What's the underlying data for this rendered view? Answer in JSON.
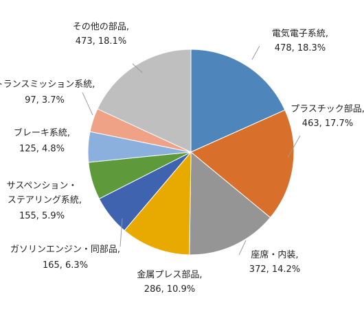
{
  "chart_data": {
    "type": "pie",
    "title": "",
    "start_angle_deg": 0,
    "direction": "clockwise",
    "slices": [
      {
        "label": "電気電子系統,",
        "value": 478,
        "percent": "18.3%",
        "color": "#4E86BC"
      },
      {
        "label": "プラスチック部品,",
        "value": 463,
        "percent": "17.7%",
        "color": "#D8702B"
      },
      {
        "label": "座席・内装,",
        "value": 372,
        "percent": "14.2%",
        "color": "#959595"
      },
      {
        "label": "金属プレス部品,",
        "value": 286,
        "percent": "10.9%",
        "color": "#E8AA00"
      },
      {
        "label": "ガソリンエンジン・同部品,",
        "value": 165,
        "percent": "6.3%",
        "color": "#3F63AF"
      },
      {
        "label": "サスペンション・ステアリング系統,",
        "label_lines": [
          "サスペンション・",
          "ステアリング系統,"
        ],
        "value": 155,
        "percent": "5.9%",
        "color": "#5E9A3C"
      },
      {
        "label": "ブレーキ系統,",
        "value": 125,
        "percent": "4.8%",
        "color": "#8CB0DE"
      },
      {
        "label": "トランスミッション系統,",
        "value": 97,
        "percent": "3.7%",
        "color": "#EFA286"
      },
      {
        "label": "その他の部品,",
        "value": 473,
        "percent": "18.1%",
        "color": "#BFBFBF"
      }
    ]
  }
}
